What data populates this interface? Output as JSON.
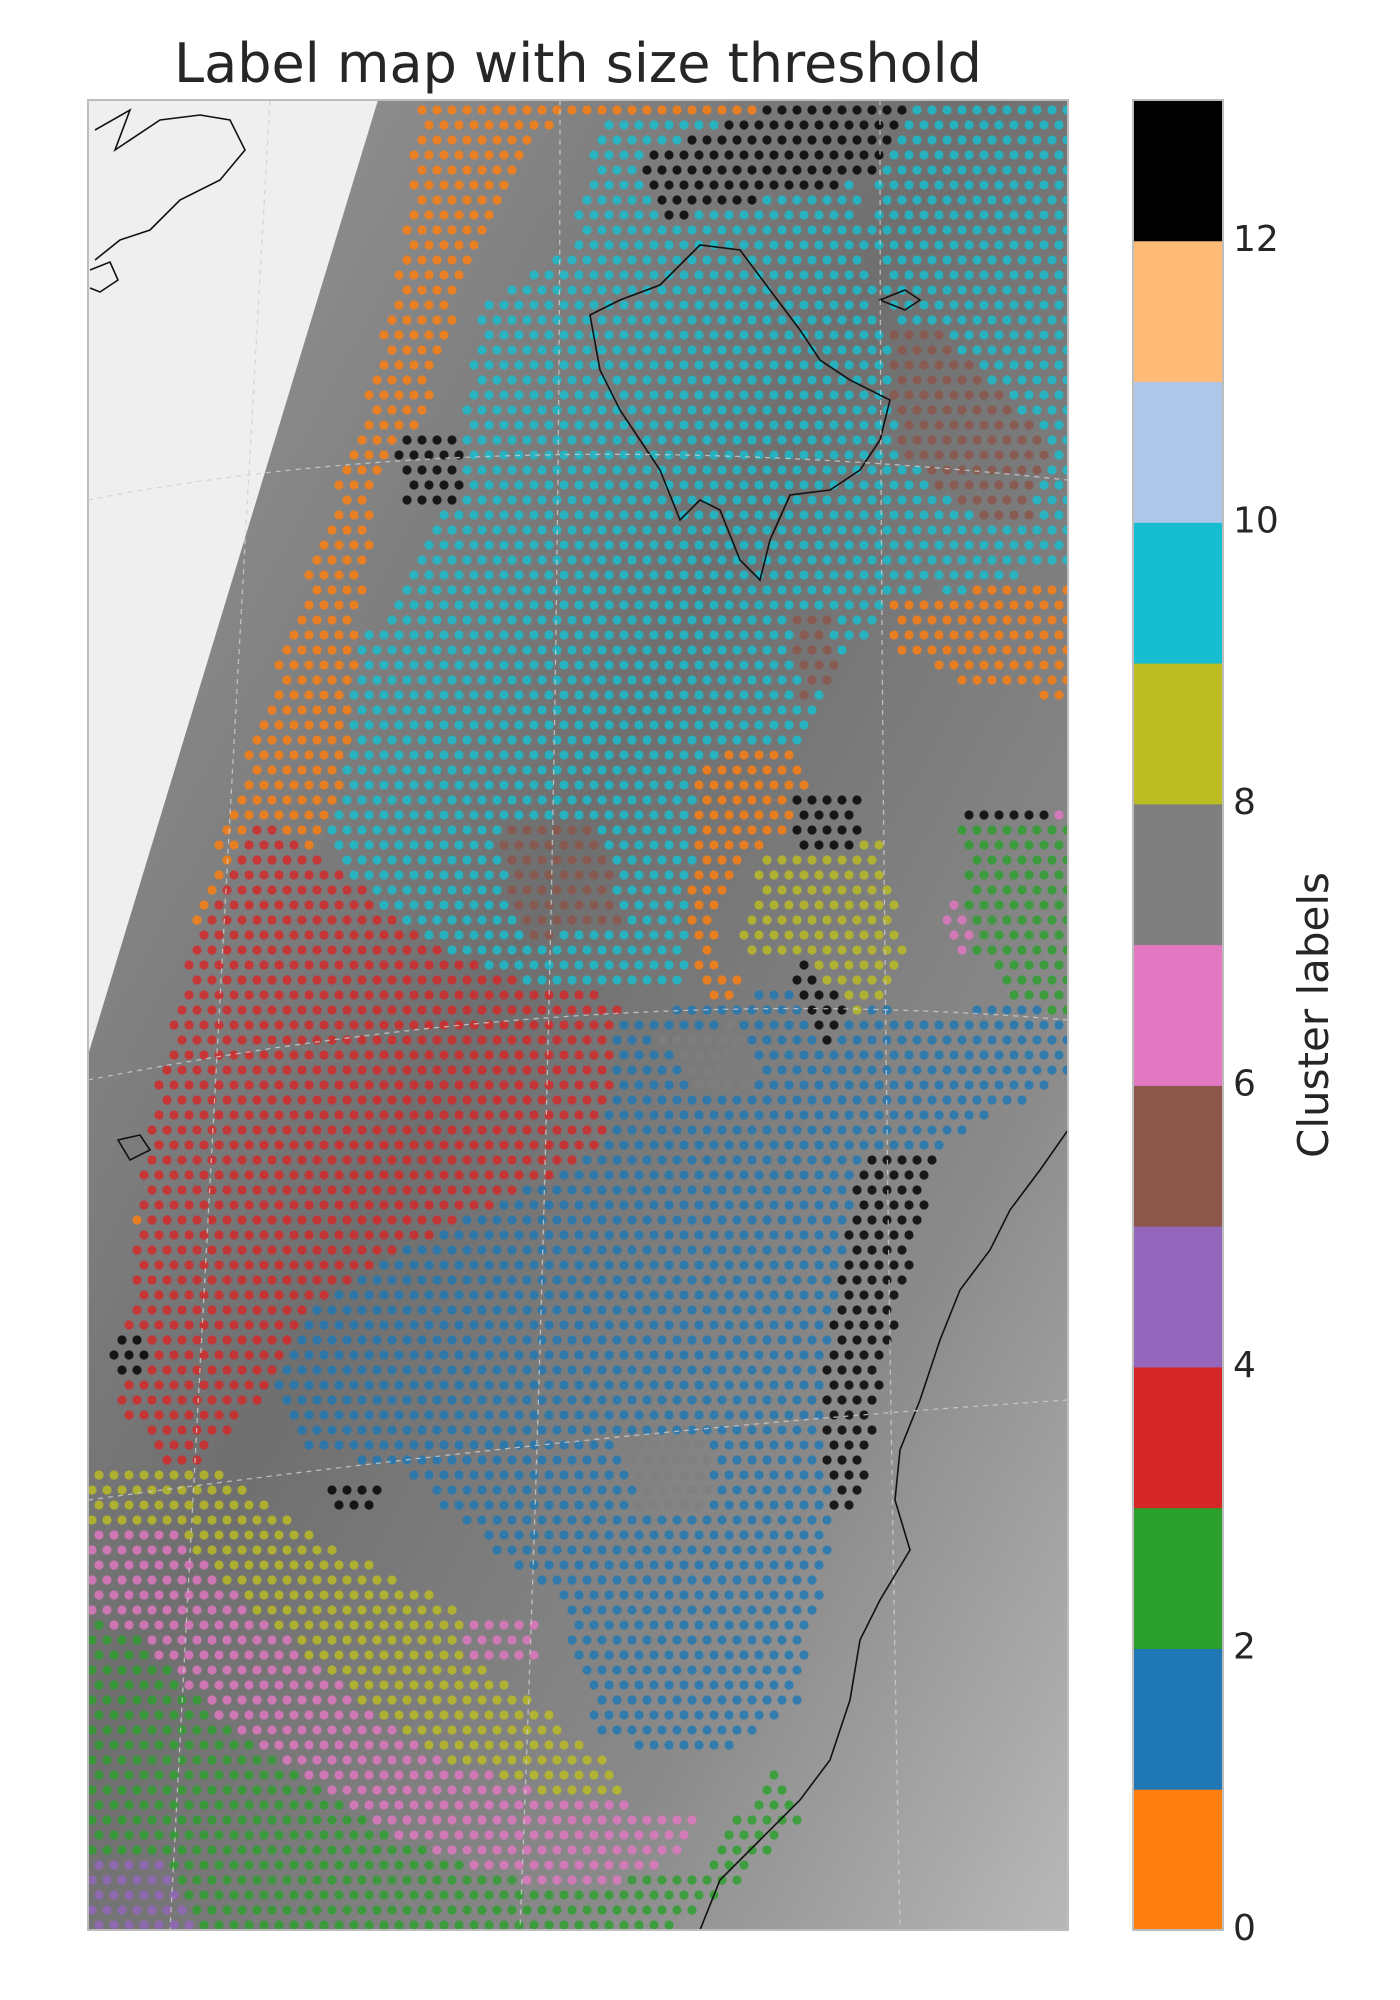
{
  "chart_data": {
    "type": "heatmap",
    "title": "Label map with size threshold",
    "colorbar": {
      "label": "Cluster labels",
      "range": [
        0,
        13
      ],
      "ticks": [
        0,
        2,
        4,
        6,
        8,
        10,
        12
      ],
      "tick_labels": [
        "0",
        "2",
        "4",
        "6",
        "8",
        "10",
        "12"
      ],
      "placement": "right"
    },
    "categories": [
      0,
      1,
      2,
      3,
      4,
      5,
      6,
      7,
      8,
      9,
      10,
      11,
      12
    ],
    "colors": [
      "#ff7f0e",
      "#1f77b4",
      "#2ca02c",
      "#d62728",
      "#9467bd",
      "#8c564b",
      "#e377c2",
      "#7f7f7f",
      "#bcbd22",
      "#17becf",
      "#aec7e8",
      "#ffbb78",
      "#000000"
    ],
    "legend": "none",
    "grid": true,
    "background": "satellite cloud imagery with coastlines",
    "regions": [
      {
        "label": 0,
        "color": "#ff7f0e"
      },
      {
        "label": 1,
        "color": "#1f77b4"
      },
      {
        "label": 2,
        "color": "#2ca02c"
      },
      {
        "label": 3,
        "color": "#d62728"
      },
      {
        "label": 4,
        "color": "#9467bd"
      },
      {
        "label": 5,
        "color": "#8c564b"
      },
      {
        "label": 6,
        "color": "#e377c2"
      },
      {
        "label": 7,
        "color": "#7f7f7f"
      },
      {
        "label": 8,
        "color": "#bcbd22"
      },
      {
        "label": 9,
        "color": "#17becf"
      },
      {
        "label": 12,
        "color": "#000000"
      }
    ]
  }
}
